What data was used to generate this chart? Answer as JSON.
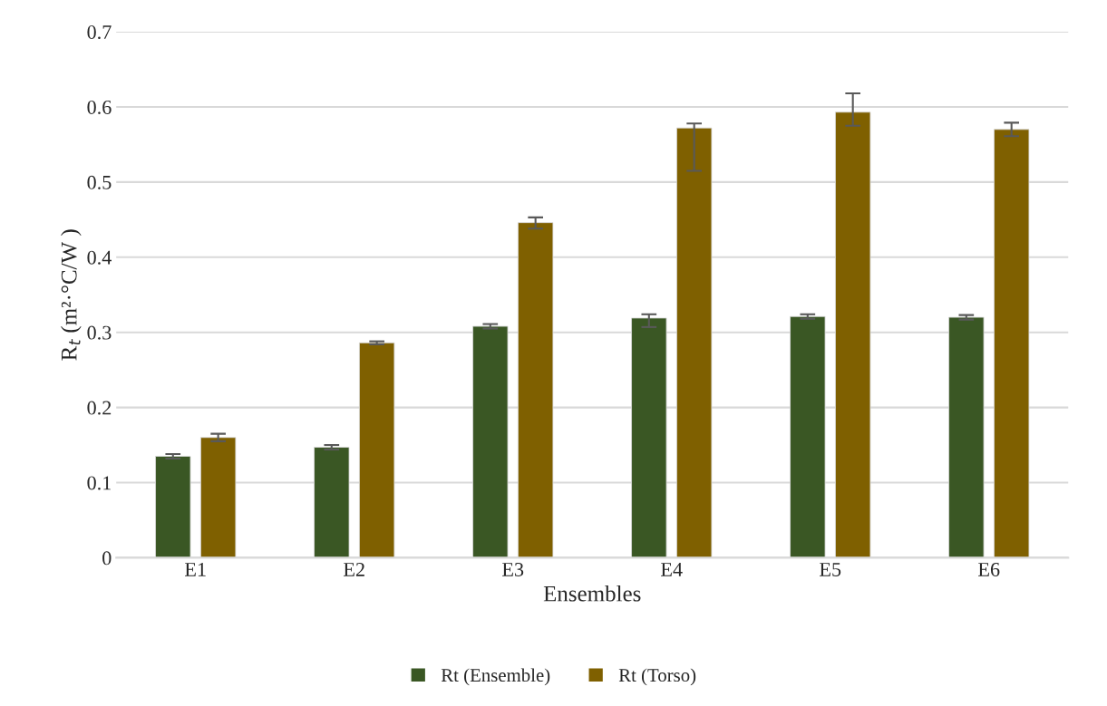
{
  "chart_data": {
    "type": "bar",
    "xlabel": "Ensembles",
    "ylabel": "R$_{t}$ (m²·°C/W )",
    "categories": [
      "E1",
      "E2",
      "E3",
      "E4",
      "E5",
      "E6"
    ],
    "series": [
      {
        "name": "Rt (Ensemble)",
        "color": "#3a5724",
        "values": [
          0.135,
          0.147,
          0.308,
          0.319,
          0.321,
          0.32
        ],
        "errors": [
          0.003,
          0.003,
          0.003,
          [
            0.307,
            0.324
          ],
          0.003,
          0.003
        ]
      },
      {
        "name": "Rt (Torso)",
        "color": "#7f6000",
        "values": [
          0.16,
          0.286,
          0.446,
          0.572,
          0.593,
          0.57
        ],
        "errors": [
          [
            0.155,
            0.165
          ],
          0.002,
          [
            0.438,
            0.453
          ],
          [
            0.515,
            0.578
          ],
          [
            0.575,
            0.618
          ],
          [
            0.561,
            0.579
          ]
        ]
      }
    ],
    "ylim": [
      0,
      0.7
    ],
    "yticks": [
      {
        "value": 0,
        "label": "0"
      },
      0.1,
      0.2,
      0.3,
      0.4,
      0.5,
      0.6,
      0.7
    ],
    "grid": "y",
    "legend": "bottom"
  }
}
